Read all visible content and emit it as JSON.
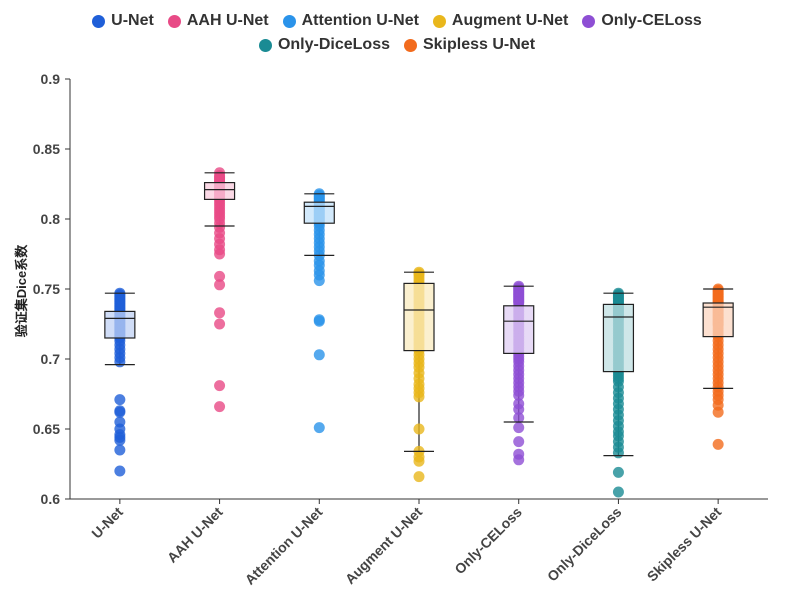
{
  "chart_data": {
    "type": "box",
    "ylabel": "验证集Dice系数",
    "ylim": [
      0.6,
      0.9
    ],
    "yticks": [
      "0.6",
      "0.65",
      "0.7",
      "0.75",
      "0.8",
      "0.85",
      "0.9"
    ],
    "legend_position": "top",
    "categories": [
      "U-Net",
      "AAH U-Net",
      "Attention U-Net",
      "Augment U-Net",
      "Only-CELoss",
      "Only-DiceLoss",
      "Skipless U-Net"
    ],
    "series": [
      {
        "name": "U-Net",
        "color": "#1f5fd8",
        "box": {
          "whisker_low": 0.696,
          "q1": 0.715,
          "median": 0.729,
          "q3": 0.734,
          "whisker_high": 0.747
        },
        "points": [
          0.747,
          0.746,
          0.745,
          0.744,
          0.743,
          0.742,
          0.741,
          0.74,
          0.739,
          0.738,
          0.737,
          0.736,
          0.735,
          0.734,
          0.733,
          0.732,
          0.731,
          0.73,
          0.729,
          0.728,
          0.727,
          0.726,
          0.725,
          0.724,
          0.723,
          0.722,
          0.721,
          0.72,
          0.719,
          0.718,
          0.717,
          0.716,
          0.715,
          0.713,
          0.71,
          0.707,
          0.704,
          0.701,
          0.698,
          0.671,
          0.663,
          0.662,
          0.655,
          0.65,
          0.646,
          0.644,
          0.642,
          0.635,
          0.62
        ]
      },
      {
        "name": "AAH U-Net",
        "color": "#e84a86",
        "box": {
          "whisker_low": 0.795,
          "q1": 0.814,
          "median": 0.821,
          "q3": 0.826,
          "whisker_high": 0.833
        },
        "points": [
          0.833,
          0.831,
          0.83,
          0.829,
          0.828,
          0.827,
          0.826,
          0.825,
          0.824,
          0.823,
          0.822,
          0.821,
          0.82,
          0.819,
          0.818,
          0.817,
          0.816,
          0.815,
          0.814,
          0.812,
          0.81,
          0.808,
          0.806,
          0.804,
          0.802,
          0.8,
          0.797,
          0.794,
          0.79,
          0.786,
          0.782,
          0.778,
          0.775,
          0.759,
          0.753,
          0.733,
          0.725,
          0.681,
          0.666
        ]
      },
      {
        "name": "Attention U-Net",
        "color": "#2a93ea",
        "box": {
          "whisker_low": 0.774,
          "q1": 0.797,
          "median": 0.809,
          "q3": 0.812,
          "whisker_high": 0.818
        },
        "points": [
          0.818,
          0.817,
          0.816,
          0.815,
          0.814,
          0.813,
          0.812,
          0.811,
          0.81,
          0.809,
          0.808,
          0.807,
          0.806,
          0.805,
          0.804,
          0.803,
          0.802,
          0.801,
          0.8,
          0.799,
          0.798,
          0.797,
          0.795,
          0.792,
          0.789,
          0.786,
          0.783,
          0.78,
          0.777,
          0.774,
          0.77,
          0.767,
          0.763,
          0.76,
          0.756,
          0.728,
          0.727,
          0.703,
          0.651
        ]
      },
      {
        "name": "Augment U-Net",
        "color": "#e9b71c",
        "box": {
          "whisker_low": 0.634,
          "q1": 0.706,
          "median": 0.735,
          "q3": 0.754,
          "whisker_high": 0.762
        },
        "points": [
          0.762,
          0.761,
          0.76,
          0.758,
          0.756,
          0.754,
          0.752,
          0.75,
          0.748,
          0.746,
          0.744,
          0.742,
          0.74,
          0.738,
          0.736,
          0.734,
          0.732,
          0.73,
          0.728,
          0.726,
          0.724,
          0.722,
          0.72,
          0.718,
          0.716,
          0.714,
          0.712,
          0.71,
          0.708,
          0.706,
          0.703,
          0.7,
          0.697,
          0.694,
          0.69,
          0.686,
          0.682,
          0.679,
          0.676,
          0.673,
          0.65,
          0.634,
          0.63,
          0.627,
          0.616
        ]
      },
      {
        "name": "Only-CELoss",
        "color": "#8e4fd4",
        "box": {
          "whisker_low": 0.655,
          "q1": 0.704,
          "median": 0.727,
          "q3": 0.738,
          "whisker_high": 0.752
        },
        "points": [
          0.752,
          0.751,
          0.75,
          0.749,
          0.748,
          0.747,
          0.746,
          0.745,
          0.744,
          0.743,
          0.742,
          0.741,
          0.74,
          0.738,
          0.736,
          0.734,
          0.732,
          0.73,
          0.728,
          0.726,
          0.724,
          0.722,
          0.72,
          0.718,
          0.716,
          0.714,
          0.712,
          0.71,
          0.708,
          0.706,
          0.704,
          0.702,
          0.7,
          0.698,
          0.695,
          0.692,
          0.689,
          0.686,
          0.683,
          0.68,
          0.677,
          0.674,
          0.668,
          0.664,
          0.658,
          0.651,
          0.641,
          0.632,
          0.628
        ]
      },
      {
        "name": "Only-DiceLoss",
        "color": "#1a8b94",
        "box": {
          "whisker_low": 0.631,
          "q1": 0.691,
          "median": 0.73,
          "q3": 0.739,
          "whisker_high": 0.747
        },
        "points": [
          0.747,
          0.746,
          0.745,
          0.744,
          0.743,
          0.742,
          0.741,
          0.74,
          0.739,
          0.738,
          0.737,
          0.736,
          0.735,
          0.734,
          0.733,
          0.732,
          0.731,
          0.73,
          0.729,
          0.728,
          0.726,
          0.724,
          0.722,
          0.72,
          0.718,
          0.716,
          0.714,
          0.712,
          0.71,
          0.708,
          0.706,
          0.704,
          0.702,
          0.7,
          0.698,
          0.696,
          0.694,
          0.692,
          0.69,
          0.688,
          0.686,
          0.684,
          0.68,
          0.676,
          0.672,
          0.668,
          0.664,
          0.66,
          0.656,
          0.652,
          0.648,
          0.645,
          0.641,
          0.637,
          0.633,
          0.619,
          0.605
        ]
      },
      {
        "name": "Skipless U-Net",
        "color": "#f26b1d",
        "box": {
          "whisker_low": 0.679,
          "q1": 0.716,
          "median": 0.737,
          "q3": 0.74,
          "whisker_high": 0.75
        },
        "points": [
          0.75,
          0.749,
          0.748,
          0.747,
          0.746,
          0.745,
          0.744,
          0.743,
          0.742,
          0.741,
          0.74,
          0.739,
          0.738,
          0.737,
          0.736,
          0.735,
          0.734,
          0.733,
          0.732,
          0.731,
          0.73,
          0.729,
          0.728,
          0.727,
          0.726,
          0.725,
          0.724,
          0.722,
          0.72,
          0.718,
          0.716,
          0.713,
          0.71,
          0.707,
          0.704,
          0.701,
          0.698,
          0.695,
          0.692,
          0.689,
          0.686,
          0.683,
          0.68,
          0.677,
          0.674,
          0.671,
          0.667,
          0.662,
          0.639
        ]
      }
    ]
  }
}
